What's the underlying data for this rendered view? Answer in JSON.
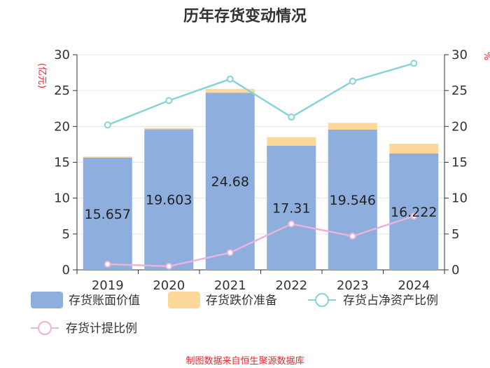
{
  "chart_data": {
    "type": "bar",
    "title": "历年存货变动情况",
    "categories": [
      "2019",
      "2020",
      "2021",
      "2022",
      "2023",
      "2024"
    ],
    "left_axis": {
      "unit": "(亿元)",
      "ylim": [
        0,
        30
      ],
      "ticks": [
        0,
        5,
        10,
        15,
        20,
        25,
        30
      ]
    },
    "right_axis": {
      "unit": "%",
      "ylim": [
        0,
        30
      ],
      "ticks": [
        0,
        5,
        10,
        15,
        20,
        25,
        30
      ]
    },
    "series": [
      {
        "name": "存货账面价值",
        "type": "bar",
        "stack": "inventory",
        "axis": "left",
        "color": "#8eaedd",
        "values": [
          15.657,
          19.603,
          24.68,
          17.31,
          19.546,
          16.222
        ],
        "labels": [
          "15.657",
          "19.603",
          "24.68",
          "17.31",
          "19.546",
          "16.222"
        ]
      },
      {
        "name": "存货跌价准备",
        "type": "bar",
        "stack": "inventory",
        "axis": "left",
        "color": "#fdd89b",
        "values": [
          0.15,
          0.2,
          0.55,
          1.2,
          0.95,
          1.35
        ]
      },
      {
        "name": "存货占净资产比例",
        "type": "line",
        "axis": "right",
        "color": "#86d3d9",
        "values": [
          20.2,
          23.6,
          26.6,
          21.3,
          26.3,
          28.8
        ]
      },
      {
        "name": "存货计提比例",
        "type": "line",
        "axis": "right",
        "color": "#e8b4da",
        "values": [
          0.8,
          0.5,
          2.4,
          6.4,
          4.7,
          7.5
        ]
      }
    ],
    "grid": true,
    "legend_position": "bottom"
  },
  "source_text": "制图数据来自恒生聚源数据库"
}
